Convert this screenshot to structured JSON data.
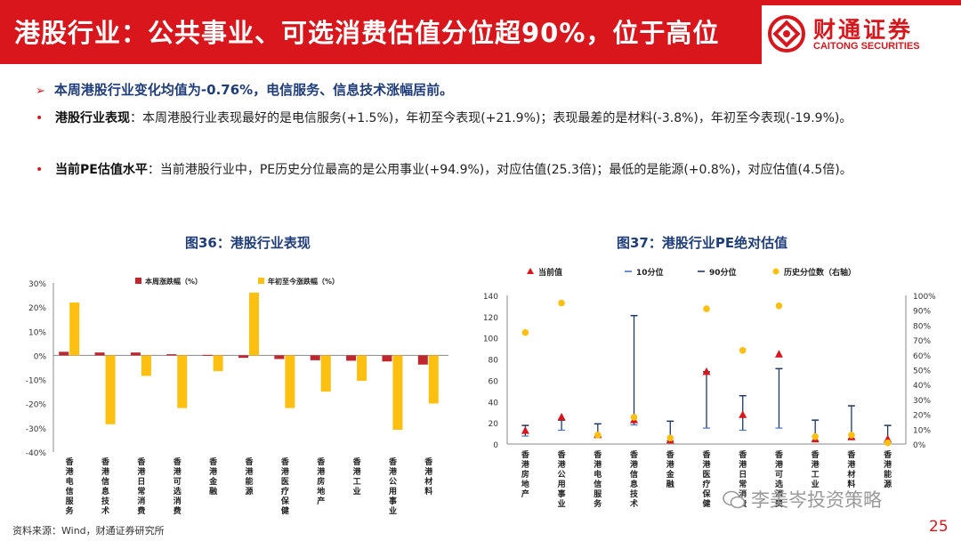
{
  "header": {
    "title": "港股行业：公共事业、可选消费估值分位超90%，位于高位",
    "logo_cn": "财通证券",
    "logo_en": "CAITONG SECURITIES"
  },
  "summary": {
    "arrow": "➢",
    "text": "本周港股行业变化均值为-0.76%，电信服务、信息技术涨幅居前。"
  },
  "bullets": [
    {
      "dot": "•",
      "label": "港股行业表现",
      "text": "：本周港股行业表现最好的是电信服务(+1.5%)，年初至今表现(+21.9%)；表现最差的是材料(-3.8%)，年初至今表现(-19.9%)。"
    },
    {
      "dot": "•",
      "label": "当前PE估值水平",
      "text": "：当前港股行业中，PE历史分位最高的是公用事业(+94.9%)，对应估值(25.3倍)；最低的是能源(+0.8%)，对应估值(4.5倍)。"
    }
  ],
  "chart_data": [
    {
      "type": "bar",
      "title": "图36：港股行业表现",
      "categories": [
        "香港电信服务",
        "香港信息技术",
        "香港日常消费",
        "香港可选消费",
        "香港金融",
        "香港能源",
        "香港医疗保健",
        "香港房地产",
        "香港工业",
        "香港公用事业",
        "香港材料"
      ],
      "series": [
        {
          "name": "本周涨跌幅（%）",
          "color": "#c0262d",
          "values": [
            1.5,
            1.2,
            1.2,
            0.5,
            0.2,
            -1.0,
            -1.5,
            -2.0,
            -2.2,
            -2.5,
            -3.8
          ]
        },
        {
          "name": "年初至今涨跌幅（%）",
          "color": "#fdc010",
          "values": [
            21.9,
            -28.5,
            -8.5,
            -21.8,
            -6.5,
            26.0,
            -21.8,
            -15.0,
            -10.5,
            -30.8,
            -19.9
          ]
        }
      ],
      "ylim": [
        -40,
        30
      ],
      "yticks": [
        "30%",
        "20%",
        "10%",
        "0%",
        "-10%",
        "-20%",
        "-30%",
        "-40%"
      ],
      "legend_position": "top"
    },
    {
      "type": "scatter",
      "title": "图37：港股行业PE绝对估值",
      "categories": [
        "香港房地产",
        "香港公用事业",
        "香港电信服务",
        "香港信息技术",
        "香港金融",
        "香港医疗保健",
        "香港日常消费",
        "香港可选消费",
        "香港工业",
        "香港材料",
        "香港能源"
      ],
      "series": [
        {
          "name": "当前值",
          "color": "#d9161c",
          "values": [
            12.5,
            25.3,
            8.5,
            22.5,
            3.5,
            68.0,
            27.5,
            84.5,
            4.5,
            6.5,
            4.5
          ]
        },
        {
          "name": "10分位",
          "color": "#4472c4",
          "values": [
            7.5,
            13.0,
            7.0,
            18.0,
            3.0,
            15.0,
            13.0,
            15.0,
            3.0,
            5.0,
            1.5
          ]
        },
        {
          "name": "90分位",
          "color": "#1f3864",
          "values": [
            17.5,
            22.5,
            19.0,
            121.0,
            21.5,
            68.0,
            45.5,
            71.0,
            22.5,
            36.0,
            17.5
          ]
        },
        {
          "name": "历史分位数（右轴）",
          "color": "#fdc010",
          "axis": "right",
          "values": [
            0.75,
            0.949,
            0.06,
            0.18,
            0.04,
            0.91,
            0.63,
            0.93,
            0.05,
            0.06,
            0.008
          ]
        }
      ],
      "ylim": [
        0,
        140
      ],
      "yticks": [
        "0",
        "20",
        "40",
        "60",
        "80",
        "100",
        "120",
        "140"
      ],
      "y2lim": [
        0,
        1
      ],
      "y2ticks": [
        "0%",
        "10%",
        "20%",
        "30%",
        "40%",
        "50%",
        "60%",
        "70%",
        "80%",
        "90%",
        "100%"
      ],
      "legend_position": "top"
    }
  ],
  "footer": {
    "source": "资料来源：Wind，财通证券研究所",
    "watermark": "李美岑投资策略",
    "page": "25"
  }
}
